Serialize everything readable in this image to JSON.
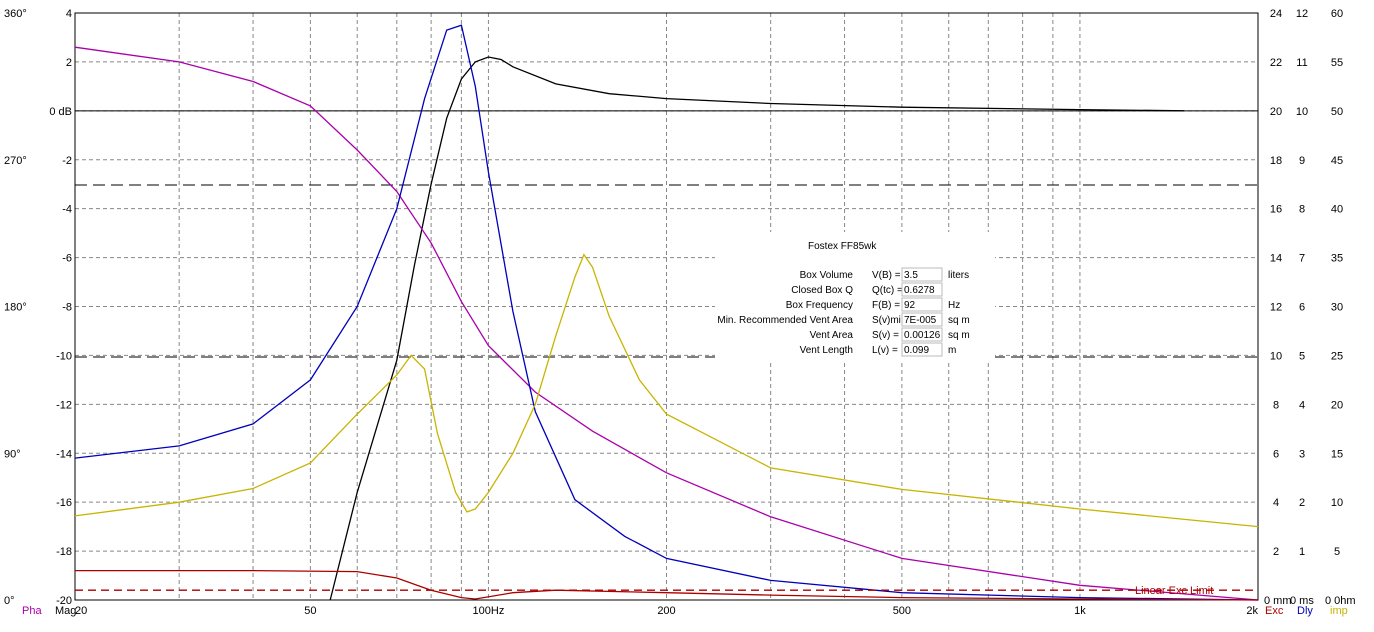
{
  "chart_data": {
    "type": "line",
    "x_scale": "log",
    "xlim": [
      20,
      2000
    ],
    "x_ticks": [
      {
        "value": 20,
        "label": "20"
      },
      {
        "value": 50,
        "label": "50"
      },
      {
        "value": 100,
        "label": "100Hz"
      },
      {
        "value": 200,
        "label": "200"
      },
      {
        "value": 500,
        "label": "500"
      },
      {
        "value": 1000,
        "label": "1k"
      },
      {
        "value": 2000,
        "label": "2k"
      }
    ],
    "mag_axis": {
      "lim": [
        -20,
        4
      ],
      "ticks": [
        "4",
        "2",
        "0 dB",
        "-2",
        "-4",
        "-6",
        "-8",
        "-10",
        "-12",
        "-14",
        "-16",
        "-18",
        "-20"
      ]
    },
    "phase_axis": {
      "ticks": [
        "360°",
        "270°",
        "180°",
        "90°",
        "0°"
      ]
    },
    "right_axes": [
      {
        "name": "Exc",
        "lim": [
          0,
          24
        ],
        "ticks": [
          "24",
          "22",
          "20",
          "18",
          "16",
          "14",
          "12",
          "10",
          "8",
          "6",
          "4",
          "2",
          "0 mm"
        ]
      },
      {
        "name": "Dly",
        "lim": [
          0,
          12
        ],
        "ticks": [
          "12",
          "11",
          "10",
          "9",
          "8",
          "7",
          "6",
          "5",
          "4",
          "3",
          "2",
          "1",
          "0 ms"
        ]
      },
      {
        "name": "Imp",
        "lim": [
          0,
          60
        ],
        "ticks": [
          "60",
          "55",
          "50",
          "45",
          "40",
          "35",
          "30",
          "25",
          "20",
          "15",
          "10",
          "5",
          "0 0hm"
        ]
      }
    ],
    "bottom_labels": {
      "pha": "Pha",
      "mag": "Mag",
      "exc": "Exc",
      "dly": "Dly",
      "imp": "imp"
    },
    "annotations": {
      "linear_exc_limit": "Linear Exc Limit"
    },
    "grid": true,
    "series": [
      {
        "key": "mag",
        "color": "#000000",
        "axis": "mag",
        "points": [
          [
            54,
            -20
          ],
          [
            60,
            -15.6
          ],
          [
            70,
            -10.2
          ],
          [
            75,
            -6.3
          ],
          [
            80,
            -3
          ],
          [
            85,
            -0.3
          ],
          [
            90,
            1.3
          ],
          [
            95,
            2.0
          ],
          [
            100,
            2.2
          ],
          [
            105,
            2.1
          ],
          [
            110,
            1.8
          ],
          [
            130,
            1.1
          ],
          [
            160,
            0.7
          ],
          [
            200,
            0.5
          ],
          [
            300,
            0.3
          ],
          [
            500,
            0.15
          ],
          [
            1000,
            0.05
          ],
          [
            1500,
            0
          ]
        ]
      },
      {
        "key": "pha",
        "color": "#aa00aa",
        "axis": "phase",
        "points": [
          [
            20,
            2.6
          ],
          [
            30,
            2.0
          ],
          [
            40,
            1.2
          ],
          [
            50,
            0.2
          ],
          [
            60,
            -1.6
          ],
          [
            70,
            -3.3
          ],
          [
            80,
            -5.4
          ],
          [
            90,
            -7.8
          ],
          [
            100,
            -9.6
          ],
          [
            120,
            -11.5
          ],
          [
            150,
            -13.1
          ],
          [
            200,
            -14.8
          ],
          [
            300,
            -16.6
          ],
          [
            500,
            -18.3
          ],
          [
            1000,
            -19.4
          ],
          [
            2000,
            -20
          ]
        ]
      },
      {
        "key": "exc",
        "color": "#0000bb",
        "axis": "exc",
        "points": [
          [
            20,
            5.8
          ],
          [
            30,
            6.3
          ],
          [
            40,
            7.2
          ],
          [
            50,
            9
          ],
          [
            60,
            12
          ],
          [
            70,
            16
          ],
          [
            78,
            20.5
          ],
          [
            85,
            23.3
          ],
          [
            90,
            23.5
          ],
          [
            95,
            21
          ],
          [
            100,
            17.5
          ],
          [
            110,
            11.8
          ],
          [
            120,
            7.7
          ],
          [
            140,
            4.1
          ],
          [
            170,
            2.6
          ],
          [
            200,
            1.7
          ],
          [
            300,
            0.8
          ],
          [
            500,
            0.3
          ],
          [
            1000,
            0.1
          ],
          [
            2000,
            0
          ]
        ]
      },
      {
        "key": "imp",
        "color": "#c8b400",
        "axis": "imp",
        "points": [
          [
            20,
            8.6
          ],
          [
            30,
            10
          ],
          [
            40,
            11.4
          ],
          [
            50,
            14
          ],
          [
            60,
            19
          ],
          [
            70,
            23
          ],
          [
            74,
            25
          ],
          [
            78,
            23.6
          ],
          [
            82,
            17
          ],
          [
            88,
            11
          ],
          [
            92,
            9
          ],
          [
            95,
            9.3
          ],
          [
            100,
            11
          ],
          [
            110,
            15
          ],
          [
            120,
            20
          ],
          [
            130,
            27
          ],
          [
            140,
            33
          ],
          [
            145,
            35.3
          ],
          [
            150,
            34
          ],
          [
            160,
            29
          ],
          [
            180,
            22.5
          ],
          [
            200,
            19
          ],
          [
            300,
            13.5
          ],
          [
            500,
            11.3
          ],
          [
            1000,
            9.3
          ],
          [
            2000,
            7.5
          ]
        ]
      },
      {
        "key": "dly",
        "color": "#aa0000",
        "axis": "dly",
        "points": [
          [
            20,
            0.6
          ],
          [
            40,
            0.6
          ],
          [
            60,
            0.58
          ],
          [
            70,
            0.45
          ],
          [
            80,
            0.2
          ],
          [
            90,
            0.05
          ],
          [
            95,
            0.02
          ],
          [
            110,
            0.15
          ],
          [
            130,
            0.2
          ],
          [
            200,
            0.15
          ],
          [
            300,
            0.1
          ],
          [
            500,
            0.05
          ],
          [
            1000,
            0.02
          ],
          [
            2000,
            0
          ]
        ]
      },
      {
        "key": "exc_limit",
        "color": "#aa0000",
        "axis": "exc",
        "dashed": true,
        "points": [
          [
            20,
            0.4
          ],
          [
            2000,
            0.4
          ]
        ]
      }
    ]
  },
  "info_panel": {
    "title": "Fostex FF85wk",
    "rows": [
      {
        "label": "Box Volume",
        "param": "V(B) =",
        "value": "3.5",
        "unit": "liters"
      },
      {
        "label": "Closed Box Q",
        "param": "Q(tc) =",
        "value": "0.6278",
        "unit": ""
      },
      {
        "label": "Box Frequency",
        "param": "F(B) =",
        "value": "92",
        "unit": "Hz"
      },
      {
        "label": "Min. Recommended Vent Area",
        "param": "S(v)min =",
        "value": "7E-005",
        "unit": "sq m"
      },
      {
        "label": "Vent Area",
        "param": "S(v) =",
        "value": "0.00126",
        "unit": "sq m"
      },
      {
        "label": "Vent Length",
        "param": "L(v) =",
        "value": "0.099",
        "unit": "m"
      }
    ]
  }
}
